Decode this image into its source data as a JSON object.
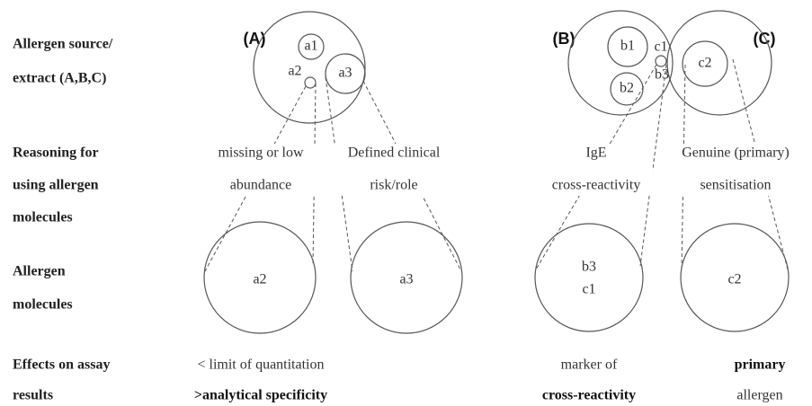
{
  "row_labels": [
    [
      "Allergen source/",
      "extract (A,B,C)"
    ],
    [
      "Reasoning for",
      "using allergen",
      "molecules"
    ],
    [
      "Allergen",
      "molecules"
    ],
    [
      "Effects on assay",
      "results"
    ]
  ],
  "panels": [
    "(A)",
    "(B)",
    "(C)"
  ],
  "source": {
    "a1": "a1",
    "a2": "a2",
    "a3": "a3",
    "b1": "b1",
    "b2": "b2",
    "b3": "b3",
    "c1": "c1",
    "c2": "c2"
  },
  "reasoning": [
    [
      "missing or low",
      "abundance"
    ],
    [
      "Defined clinical",
      "risk/role"
    ],
    [
      "IgE",
      "cross-reactivity"
    ],
    [
      "Genuine (primary)",
      "sensitisation"
    ]
  ],
  "molecules": [
    [
      "a2"
    ],
    [
      "a3"
    ],
    [
      "b3",
      "c1"
    ],
    [
      "c2"
    ]
  ],
  "effects": [
    [
      "< limit of quantitation",
      ">analytical specificity"
    ],
    [
      "marker of",
      "cross-reactivity"
    ],
    [
      "primary",
      "allergen"
    ]
  ]
}
